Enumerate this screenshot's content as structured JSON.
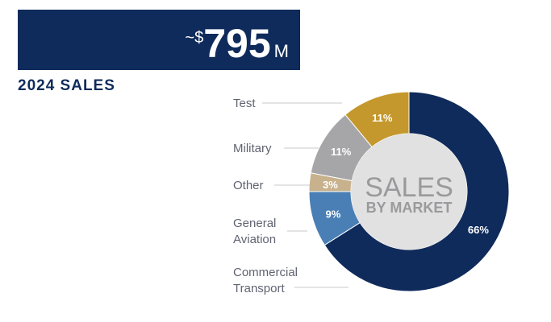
{
  "header": {
    "prefix": "~$",
    "amount": 795,
    "suffix": "M",
    "label": "2024 SALES"
  },
  "chart_data": {
    "type": "donut",
    "center_title": "SALES",
    "center_subtitle": "BY MARKET",
    "categories": [
      "Commercial Transport",
      "General Aviation",
      "Other",
      "Military",
      "Test"
    ],
    "values": [
      66,
      9,
      3,
      11,
      11
    ],
    "value_labels": [
      "66%",
      "9%",
      "3%",
      "11%",
      "11%"
    ],
    "colors": [
      "#0f2b5b",
      "#4a7fb5",
      "#c8b28d",
      "#a6a6a8",
      "#c4982c"
    ]
  }
}
